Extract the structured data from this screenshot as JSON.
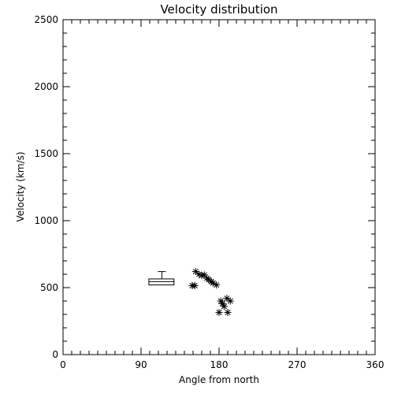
{
  "chart_data": {
    "type": "scatter",
    "title": "Velocity distribution",
    "xlabel": "Angle from north",
    "ylabel": "Velocity (km/s)",
    "xlim": [
      0,
      360
    ],
    "ylim": [
      0,
      2500
    ],
    "x_ticks": [
      {
        "value": 0,
        "label": "0"
      },
      {
        "value": 90,
        "label": "90"
      },
      {
        "value": 180,
        "label": "180"
      },
      {
        "value": 270,
        "label": "270"
      },
      {
        "value": 360,
        "label": "360"
      }
    ],
    "y_ticks": [
      {
        "value": 0,
        "label": "0"
      },
      {
        "value": 500,
        "label": "500"
      },
      {
        "value": 1000,
        "label": "1000"
      },
      {
        "value": 1500,
        "label": "1500"
      },
      {
        "value": 2000,
        "label": "2000"
      },
      {
        "value": 2500,
        "label": "2500"
      }
    ],
    "x_minor_step": 10,
    "y_minor_step": 100,
    "grid": false,
    "legend": "none",
    "boxplot": {
      "x_min": 99,
      "x_max": 128,
      "q1": 520,
      "median": 545,
      "q3": 565,
      "whisker_high": 620,
      "whisker_x": 114
    },
    "series": [
      {
        "marker": "asterisk",
        "points": [
          [
            149,
            515
          ],
          [
            152,
            515
          ],
          [
            153,
            620
          ],
          [
            157,
            600
          ],
          [
            160,
            590
          ],
          [
            163,
            595
          ],
          [
            166,
            570
          ],
          [
            168,
            560
          ],
          [
            171,
            545
          ],
          [
            173,
            535
          ],
          [
            177,
            520
          ],
          [
            180,
            315
          ],
          [
            182,
            400
          ],
          [
            184,
            380
          ],
          [
            186,
            360
          ],
          [
            189,
            420
          ],
          [
            190,
            315
          ],
          [
            193,
            400
          ]
        ]
      }
    ],
    "colors": {
      "foreground": "#000000",
      "background": "#ffffff"
    }
  }
}
